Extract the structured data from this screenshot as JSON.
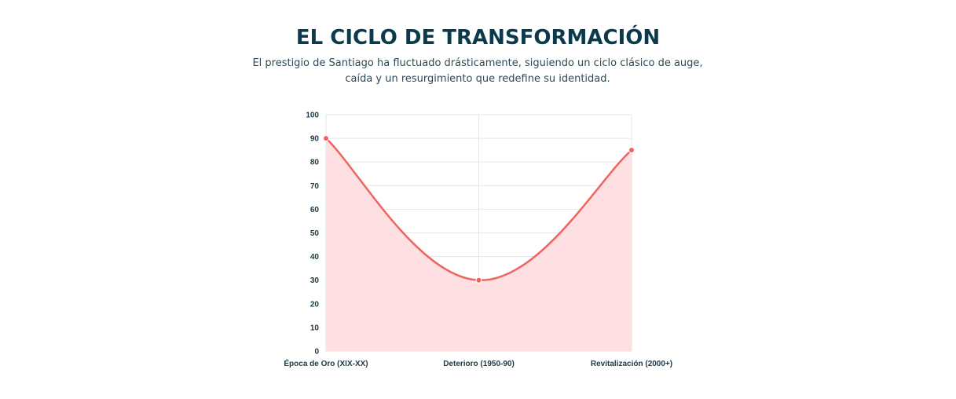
{
  "header": {
    "title": "EL CICLO DE TRANSFORMACIÓN",
    "subtitle": "El prestigio de Santiago ha fluctuado drásticamente, siguiendo un ciclo clásico de auge, caída y un resurgimiento que redefine su identidad."
  },
  "chart_data": {
    "type": "area",
    "categories": [
      "Época de Oro (XIX-XX)",
      "Deterioro (1950-90)",
      "Revitalización (2000+)"
    ],
    "series": [
      {
        "values": [
          90,
          30,
          85
        ]
      }
    ],
    "ylim": [
      0,
      100
    ],
    "yticks": [
      0,
      10,
      20,
      30,
      40,
      50,
      60,
      70,
      80,
      90,
      100
    ],
    "grid": true,
    "line_color": "#f0645f",
    "fill_color": "#ffe0e2",
    "grid_color": "#e6e6e6",
    "label_color": "#1c3a48"
  }
}
